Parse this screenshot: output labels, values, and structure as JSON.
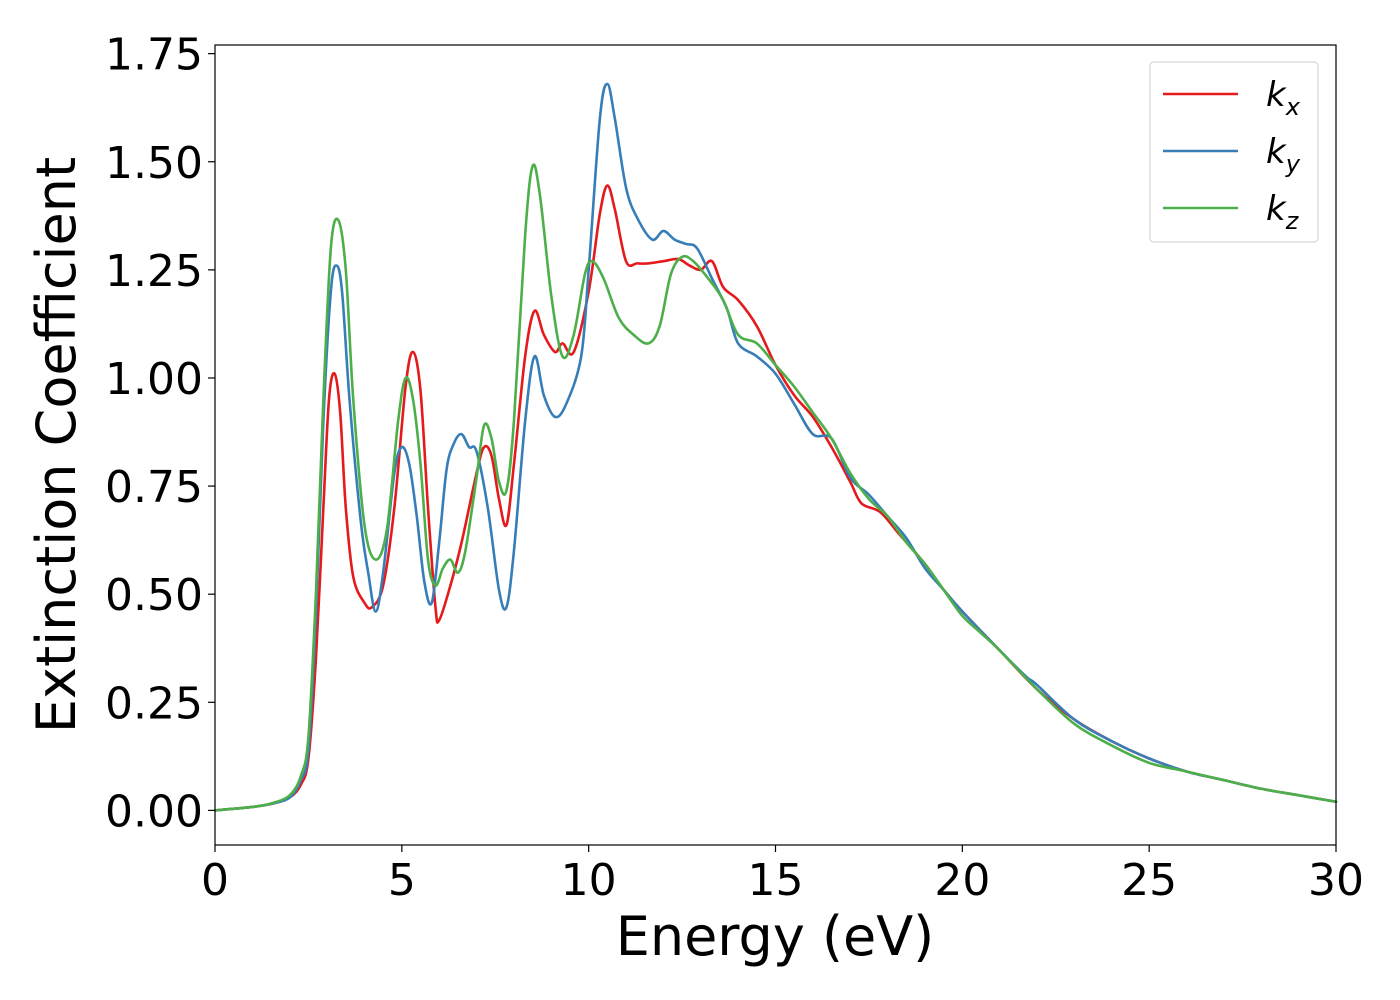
{
  "chart_data": {
    "type": "line",
    "xlabel": "Energy (eV)",
    "ylabel": "Extinction Coefficient",
    "xlim": [
      0,
      30
    ],
    "ylim": [
      -0.08,
      1.77
    ],
    "xticks": [
      "0",
      "5",
      "10",
      "15",
      "20",
      "25",
      "30"
    ],
    "yticks": [
      "0.00",
      "0.25",
      "0.50",
      "0.75",
      "1.00",
      "1.25",
      "1.50",
      "1.75"
    ],
    "grid": false,
    "legend_position": "top-right",
    "series": [
      {
        "name": "k",
        "subscript": "x",
        "color": "#e41a1c",
        "points": [
          [
            0,
            0.0
          ],
          [
            1,
            0.008
          ],
          [
            1.5,
            0.015
          ],
          [
            2,
            0.03
          ],
          [
            2.3,
            0.06
          ],
          [
            2.5,
            0.12
          ],
          [
            2.7,
            0.35
          ],
          [
            2.9,
            0.7
          ],
          [
            3.05,
            0.95
          ],
          [
            3.2,
            1.01
          ],
          [
            3.35,
            0.92
          ],
          [
            3.5,
            0.7
          ],
          [
            3.7,
            0.54
          ],
          [
            4.0,
            0.48
          ],
          [
            4.2,
            0.47
          ],
          [
            4.5,
            0.52
          ],
          [
            4.8,
            0.7
          ],
          [
            5.1,
            0.98
          ],
          [
            5.3,
            1.06
          ],
          [
            5.5,
            0.97
          ],
          [
            5.7,
            0.7
          ],
          [
            5.9,
            0.47
          ],
          [
            6.0,
            0.44
          ],
          [
            6.3,
            0.52
          ],
          [
            6.6,
            0.62
          ],
          [
            7.0,
            0.78
          ],
          [
            7.2,
            0.84
          ],
          [
            7.4,
            0.82
          ],
          [
            7.6,
            0.72
          ],
          [
            7.8,
            0.66
          ],
          [
            8.0,
            0.8
          ],
          [
            8.3,
            1.05
          ],
          [
            8.55,
            1.155
          ],
          [
            8.8,
            1.1
          ],
          [
            9.1,
            1.06
          ],
          [
            9.3,
            1.08
          ],
          [
            9.6,
            1.06
          ],
          [
            10.0,
            1.2
          ],
          [
            10.3,
            1.38
          ],
          [
            10.5,
            1.445
          ],
          [
            10.7,
            1.39
          ],
          [
            11.0,
            1.27
          ],
          [
            11.3,
            1.265
          ],
          [
            11.6,
            1.265
          ],
          [
            12.0,
            1.27
          ],
          [
            12.4,
            1.275
          ],
          [
            12.7,
            1.26
          ],
          [
            13.0,
            1.25
          ],
          [
            13.3,
            1.27
          ],
          [
            13.6,
            1.21
          ],
          [
            14.0,
            1.18
          ],
          [
            14.5,
            1.12
          ],
          [
            15.0,
            1.03
          ],
          [
            15.5,
            0.96
          ],
          [
            16.0,
            0.91
          ],
          [
            16.5,
            0.84
          ],
          [
            17.0,
            0.76
          ],
          [
            17.3,
            0.71
          ],
          [
            17.8,
            0.69
          ],
          [
            18.3,
            0.64
          ],
          [
            19.0,
            0.57
          ],
          [
            19.5,
            0.51
          ],
          [
            20.0,
            0.46
          ],
          [
            21.0,
            0.37
          ],
          [
            22.0,
            0.28
          ],
          [
            23.0,
            0.21
          ],
          [
            24.0,
            0.16
          ],
          [
            25.0,
            0.12
          ],
          [
            26.0,
            0.09
          ],
          [
            27.0,
            0.07
          ],
          [
            28.0,
            0.05
          ],
          [
            29.0,
            0.035
          ],
          [
            30.0,
            0.02
          ]
        ]
      },
      {
        "name": "k",
        "subscript": "y",
        "color": "#377eb8",
        "points": [
          [
            0,
            0.0
          ],
          [
            1,
            0.008
          ],
          [
            1.5,
            0.015
          ],
          [
            2,
            0.03
          ],
          [
            2.3,
            0.07
          ],
          [
            2.5,
            0.14
          ],
          [
            2.7,
            0.45
          ],
          [
            2.9,
            0.9
          ],
          [
            3.1,
            1.2
          ],
          [
            3.25,
            1.26
          ],
          [
            3.4,
            1.2
          ],
          [
            3.6,
            0.95
          ],
          [
            3.9,
            0.67
          ],
          [
            4.1,
            0.55
          ],
          [
            4.3,
            0.46
          ],
          [
            4.5,
            0.55
          ],
          [
            4.8,
            0.78
          ],
          [
            5.0,
            0.84
          ],
          [
            5.2,
            0.8
          ],
          [
            5.4,
            0.68
          ],
          [
            5.6,
            0.53
          ],
          [
            5.8,
            0.48
          ],
          [
            6.0,
            0.62
          ],
          [
            6.2,
            0.79
          ],
          [
            6.4,
            0.85
          ],
          [
            6.6,
            0.87
          ],
          [
            6.8,
            0.84
          ],
          [
            7.0,
            0.83
          ],
          [
            7.3,
            0.7
          ],
          [
            7.6,
            0.51
          ],
          [
            7.8,
            0.47
          ],
          [
            8.0,
            0.6
          ],
          [
            8.3,
            0.9
          ],
          [
            8.55,
            1.05
          ],
          [
            8.8,
            0.96
          ],
          [
            9.1,
            0.91
          ],
          [
            9.4,
            0.94
          ],
          [
            9.8,
            1.05
          ],
          [
            10.0,
            1.25
          ],
          [
            10.3,
            1.6
          ],
          [
            10.5,
            1.68
          ],
          [
            10.7,
            1.6
          ],
          [
            11.0,
            1.44
          ],
          [
            11.3,
            1.37
          ],
          [
            11.7,
            1.32
          ],
          [
            12.0,
            1.34
          ],
          [
            12.3,
            1.32
          ],
          [
            12.6,
            1.31
          ],
          [
            12.9,
            1.3
          ],
          [
            13.3,
            1.23
          ],
          [
            13.7,
            1.16
          ],
          [
            14.0,
            1.08
          ],
          [
            14.5,
            1.05
          ],
          [
            15.0,
            1.01
          ],
          [
            15.5,
            0.94
          ],
          [
            16.0,
            0.87
          ],
          [
            16.5,
            0.86
          ],
          [
            17.0,
            0.77
          ],
          [
            17.5,
            0.73
          ],
          [
            18.0,
            0.68
          ],
          [
            18.5,
            0.63
          ],
          [
            19.0,
            0.56
          ],
          [
            19.5,
            0.51
          ],
          [
            20.0,
            0.46
          ],
          [
            21.0,
            0.37
          ],
          [
            21.7,
            0.31
          ],
          [
            22.0,
            0.29
          ],
          [
            23.0,
            0.21
          ],
          [
            24.0,
            0.16
          ],
          [
            25.0,
            0.12
          ],
          [
            26.0,
            0.09
          ],
          [
            27.0,
            0.07
          ],
          [
            28.0,
            0.05
          ],
          [
            29.0,
            0.035
          ],
          [
            30.0,
            0.02
          ]
        ]
      },
      {
        "name": "k",
        "subscript": "z",
        "color": "#4daf4a",
        "points": [
          [
            0,
            0.0
          ],
          [
            1,
            0.008
          ],
          [
            1.5,
            0.016
          ],
          [
            2,
            0.035
          ],
          [
            2.3,
            0.08
          ],
          [
            2.5,
            0.17
          ],
          [
            2.7,
            0.5
          ],
          [
            2.9,
            0.95
          ],
          [
            3.1,
            1.3
          ],
          [
            3.3,
            1.365
          ],
          [
            3.5,
            1.25
          ],
          [
            3.7,
            0.95
          ],
          [
            4.0,
            0.66
          ],
          [
            4.3,
            0.58
          ],
          [
            4.6,
            0.65
          ],
          [
            4.9,
            0.9
          ],
          [
            5.1,
            1.0
          ],
          [
            5.3,
            0.95
          ],
          [
            5.5,
            0.8
          ],
          [
            5.7,
            0.58
          ],
          [
            5.9,
            0.52
          ],
          [
            6.1,
            0.56
          ],
          [
            6.3,
            0.58
          ],
          [
            6.5,
            0.55
          ],
          [
            6.7,
            0.6
          ],
          [
            7.0,
            0.77
          ],
          [
            7.2,
            0.89
          ],
          [
            7.4,
            0.86
          ],
          [
            7.6,
            0.76
          ],
          [
            7.8,
            0.74
          ],
          [
            8.0,
            0.9
          ],
          [
            8.3,
            1.33
          ],
          [
            8.5,
            1.49
          ],
          [
            8.7,
            1.42
          ],
          [
            9.0,
            1.19
          ],
          [
            9.3,
            1.05
          ],
          [
            9.6,
            1.1
          ],
          [
            9.9,
            1.24
          ],
          [
            10.1,
            1.27
          ],
          [
            10.4,
            1.23
          ],
          [
            10.8,
            1.14
          ],
          [
            11.2,
            1.1
          ],
          [
            11.6,
            1.08
          ],
          [
            11.9,
            1.12
          ],
          [
            12.2,
            1.24
          ],
          [
            12.5,
            1.28
          ],
          [
            12.8,
            1.27
          ],
          [
            13.2,
            1.23
          ],
          [
            13.6,
            1.18
          ],
          [
            14.0,
            1.1
          ],
          [
            14.5,
            1.08
          ],
          [
            15.0,
            1.03
          ],
          [
            15.5,
            0.98
          ],
          [
            16.0,
            0.92
          ],
          [
            16.5,
            0.86
          ],
          [
            17.0,
            0.78
          ],
          [
            17.5,
            0.72
          ],
          [
            18.0,
            0.68
          ],
          [
            18.5,
            0.62
          ],
          [
            19.0,
            0.57
          ],
          [
            19.5,
            0.51
          ],
          [
            20.0,
            0.45
          ],
          [
            20.5,
            0.41
          ],
          [
            21.0,
            0.37
          ],
          [
            22.0,
            0.28
          ],
          [
            23.0,
            0.2
          ],
          [
            24.0,
            0.15
          ],
          [
            25.0,
            0.11
          ],
          [
            26.0,
            0.09
          ],
          [
            27.0,
            0.07
          ],
          [
            28.0,
            0.05
          ],
          [
            29.0,
            0.035
          ],
          [
            30.0,
            0.02
          ]
        ]
      }
    ]
  }
}
